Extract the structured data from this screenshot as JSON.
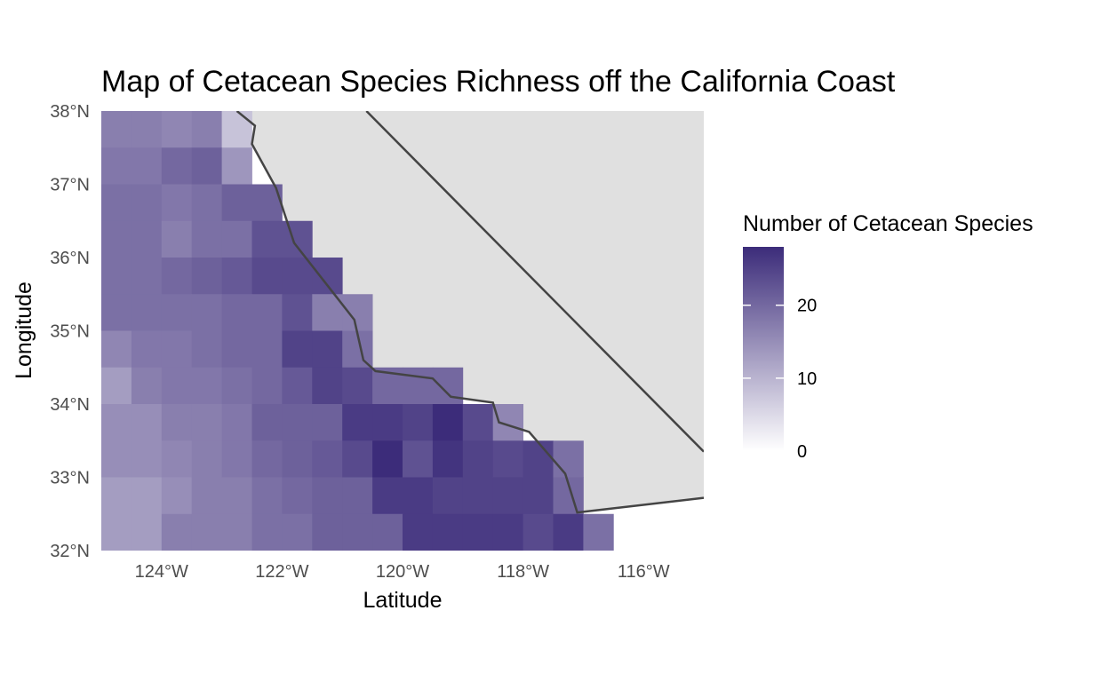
{
  "chart_data": {
    "type": "heatmap",
    "title": "Map of Cetacean Species Richness off the California Coast",
    "xlabel": "Latitude",
    "ylabel": "Longitude",
    "xlim": [
      -125,
      -115
    ],
    "ylim": [
      32,
      38
    ],
    "x_ticks": [
      {
        "value": -124,
        "label": "124°W"
      },
      {
        "value": -122,
        "label": "122°W"
      },
      {
        "value": -120,
        "label": "120°W"
      },
      {
        "value": -118,
        "label": "118°W"
      },
      {
        "value": -116,
        "label": "116°W"
      }
    ],
    "y_ticks": [
      {
        "value": 32,
        "label": "32°N"
      },
      {
        "value": 33,
        "label": "33°N"
      },
      {
        "value": 34,
        "label": "34°N"
      },
      {
        "value": 35,
        "label": "35°N"
      },
      {
        "value": 36,
        "label": "36°N"
      },
      {
        "value": 37,
        "label": "37°N"
      },
      {
        "value": 38,
        "label": "38°N"
      }
    ],
    "grid_origin": {
      "lon": -125,
      "lat": 32
    },
    "cell_size_deg": 0.5,
    "cells_from_north": [
      [
        17,
        17,
        16,
        17,
        8,
        null,
        null,
        null,
        null,
        null,
        null,
        null,
        null,
        null,
        null,
        null,
        null,
        null,
        null,
        null
      ],
      [
        18,
        18,
        20,
        21,
        14,
        null,
        null,
        null,
        null,
        null,
        null,
        null,
        null,
        null,
        null,
        null,
        null,
        null,
        null,
        null
      ],
      [
        19,
        19,
        18,
        19,
        21,
        21,
        null,
        null,
        null,
        null,
        null,
        null,
        null,
        null,
        null,
        null,
        null,
        null,
        null,
        null
      ],
      [
        19,
        19,
        17,
        19,
        19,
        23,
        23,
        null,
        null,
        null,
        null,
        null,
        null,
        null,
        null,
        null,
        null,
        null,
        null,
        null
      ],
      [
        19,
        19,
        20,
        21,
        22,
        24,
        24,
        24,
        null,
        null,
        null,
        null,
        null,
        null,
        null,
        null,
        null,
        null,
        null,
        null
      ],
      [
        19,
        19,
        19,
        19,
        20,
        20,
        23,
        17,
        17,
        null,
        null,
        null,
        null,
        null,
        null,
        null,
        null,
        null,
        null,
        null
      ],
      [
        16,
        18,
        18,
        19,
        20,
        20,
        25,
        25,
        19,
        null,
        null,
        null,
        null,
        null,
        null,
        null,
        null,
        null,
        null,
        null
      ],
      [
        13,
        17,
        18,
        18,
        19,
        20,
        22,
        25,
        24,
        20,
        20,
        20,
        null,
        null,
        null,
        null,
        null,
        null,
        null,
        null
      ],
      [
        15,
        15,
        17,
        17,
        18,
        21,
        21,
        21,
        26,
        26,
        25,
        28,
        24,
        16,
        null,
        null,
        null,
        null,
        null,
        null
      ],
      [
        15,
        15,
        16,
        17,
        18,
        20,
        21,
        22,
        24,
        28,
        23,
        27,
        25,
        24,
        25,
        19,
        null,
        null,
        null,
        null
      ],
      [
        13,
        13,
        15,
        17,
        17,
        19,
        20,
        21,
        21,
        26,
        26,
        25,
        25,
        25,
        25,
        20,
        null,
        null,
        null,
        null
      ],
      [
        13,
        13,
        17,
        17,
        17,
        19,
        19,
        21,
        21,
        21,
        26,
        26,
        26,
        26,
        24,
        26,
        19,
        null,
        null,
        null
      ]
    ],
    "coastline": [
      [
        -122.75,
        38
      ],
      [
        -122.45,
        37.8
      ],
      [
        -122.5,
        37.55
      ],
      [
        -122.1,
        36.95
      ],
      [
        -121.8,
        36.2
      ],
      [
        -120.8,
        35.15
      ],
      [
        -120.65,
        34.6
      ],
      [
        -120.45,
        34.45
      ],
      [
        -119.5,
        34.35
      ],
      [
        -119.2,
        34.1
      ],
      [
        -118.5,
        34.02
      ],
      [
        -118.4,
        33.75
      ],
      [
        -117.9,
        33.62
      ],
      [
        -117.3,
        33.05
      ],
      [
        -117.1,
        32.52
      ],
      [
        -115,
        32.72
      ]
    ],
    "inland_border": [
      [
        -120.6,
        38
      ],
      [
        -115,
        33.35
      ]
    ],
    "colors": {
      "scale_low": "#ffffff",
      "scale_high": "#3c2c7a",
      "land": "#e0e0e0",
      "coast_line": "#444444"
    },
    "legend": {
      "title": "Number of Cetacean Species",
      "range": [
        0,
        28
      ],
      "breaks": [
        0,
        10,
        20
      ],
      "labels": [
        "0",
        "10",
        "20"
      ],
      "position": "right"
    }
  }
}
